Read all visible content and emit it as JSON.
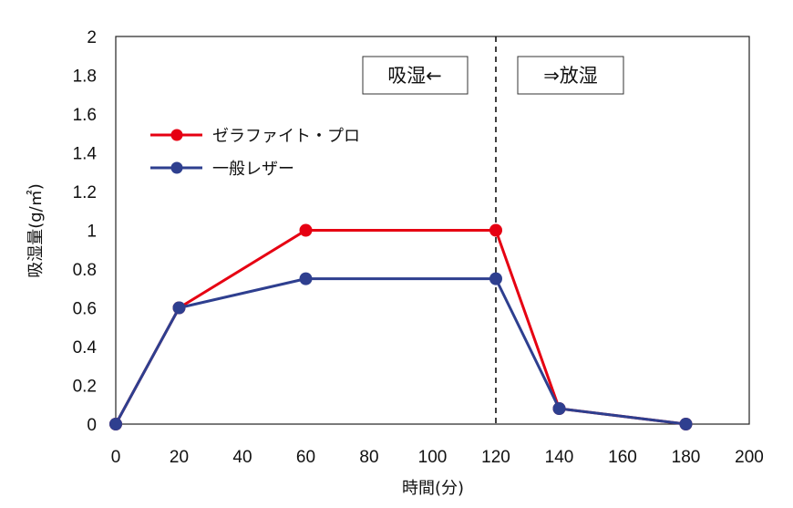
{
  "chart_data": {
    "type": "line",
    "title": "",
    "xlabel": "時間(分)",
    "ylabel": "吸湿量(g/㎡)",
    "xlim": [
      0,
      200
    ],
    "ylim": [
      0,
      2
    ],
    "x_ticks": [
      "0",
      "20",
      "40",
      "60",
      "80",
      "100",
      "120",
      "140",
      "160",
      "180",
      "200"
    ],
    "y_ticks": [
      "0",
      "0.2",
      "0.4",
      "0.6",
      "0.8",
      "1",
      "1.2",
      "1.4",
      "1.6",
      "1.8",
      "2"
    ],
    "grid": false,
    "legend_position": "upper-left",
    "series": [
      {
        "name": "ゼラファイト・プロ",
        "color": "#e60012",
        "x": [
          0,
          20,
          60,
          120,
          140,
          180
        ],
        "values": [
          0,
          0.6,
          1.0,
          1.0,
          0.08,
          0
        ]
      },
      {
        "name": "一般レザー",
        "color": "#2e3f8f",
        "x": [
          0,
          20,
          60,
          120,
          140,
          180
        ],
        "values": [
          0,
          0.6,
          0.75,
          0.75,
          0.08,
          0
        ]
      }
    ],
    "reference_line": {
      "x": 120,
      "style": "dashed"
    },
    "annotations": [
      {
        "text": "吸湿←",
        "side": "left-of-line"
      },
      {
        "text": "⇒放湿",
        "side": "right-of-line"
      }
    ]
  }
}
